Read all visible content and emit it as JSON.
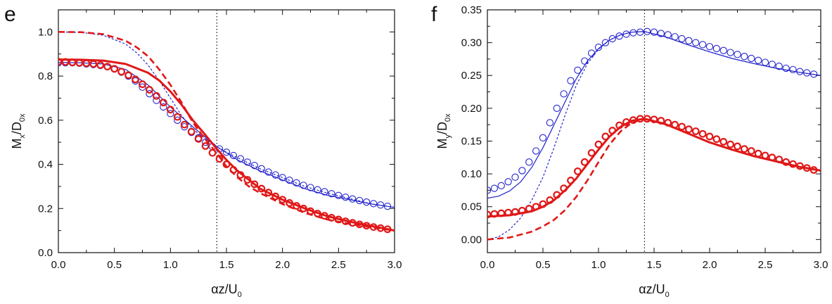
{
  "colors": {
    "blue": "#2323cc",
    "red": "#e01818",
    "axis": "#111111"
  },
  "chart_data": [
    {
      "type": "line",
      "panel_label": "e",
      "xlabel": {
        "main": "αz/U",
        "sub": "0"
      },
      "ylabel": {
        "main": "M",
        "sub1": "x",
        "mid": "/D",
        "sub2": "0x"
      },
      "xlim": [
        0,
        3
      ],
      "ylim": [
        0,
        1.1
      ],
      "xticks": [
        "0.0",
        "0.5",
        "1.0",
        "1.5",
        "2.0",
        "2.5",
        "3.0"
      ],
      "yticks": [
        "0.0",
        "0.2",
        "0.4",
        "0.6",
        "0.8",
        "1.0"
      ],
      "vline_x": 1.414,
      "series": [
        {
          "style": "blue-dashed-thin",
          "x": [
            0,
            0.2,
            0.4,
            0.6,
            0.7,
            0.8,
            0.9,
            1.0,
            1.1,
            1.2,
            1.3,
            1.414,
            1.5,
            1.6,
            1.8,
            2.0,
            2.2,
            2.4,
            2.6,
            2.8,
            3.0
          ],
          "y": [
            1.0,
            0.998,
            0.985,
            0.945,
            0.905,
            0.85,
            0.78,
            0.7,
            0.62,
            0.56,
            0.52,
            0.48,
            0.455,
            0.43,
            0.38,
            0.34,
            0.3,
            0.27,
            0.245,
            0.22,
            0.205
          ]
        },
        {
          "style": "blue-solid-thin",
          "x": [
            0,
            0.2,
            0.4,
            0.6,
            0.8,
            1.0,
            1.2,
            1.414,
            1.6,
            1.8,
            2.0,
            2.2,
            2.4,
            2.6,
            2.8,
            3.0
          ],
          "y": [
            0.862,
            0.86,
            0.855,
            0.83,
            0.76,
            0.66,
            0.57,
            0.48,
            0.42,
            0.37,
            0.33,
            0.29,
            0.26,
            0.24,
            0.22,
            0.205
          ]
        },
        {
          "style": "blue-circles",
          "x": [
            0,
            0.0625,
            0.125,
            0.1875,
            0.25,
            0.3125,
            0.375,
            0.4375,
            0.5,
            0.5625,
            0.625,
            0.6875,
            0.75,
            0.8125,
            0.875,
            0.9375,
            1.0,
            1.0625,
            1.125,
            1.1875,
            1.25,
            1.3125,
            1.375,
            1.4375,
            1.5,
            1.5625,
            1.625,
            1.6875,
            1.75,
            1.8125,
            1.875,
            1.9375,
            2.0,
            2.0625,
            2.125,
            2.1875,
            2.25,
            2.3125,
            2.375,
            2.4375,
            2.5,
            2.5625,
            2.625,
            2.6875,
            2.75,
            2.8125,
            2.875,
            2.9375
          ],
          "y": [
            0.86,
            0.86,
            0.86,
            0.858,
            0.855,
            0.852,
            0.848,
            0.842,
            0.832,
            0.818,
            0.8,
            0.778,
            0.75,
            0.72,
            0.69,
            0.66,
            0.63,
            0.6,
            0.57,
            0.545,
            0.52,
            0.5,
            0.48,
            0.47,
            0.455,
            0.44,
            0.425,
            0.41,
            0.395,
            0.38,
            0.365,
            0.352,
            0.34,
            0.328,
            0.316,
            0.305,
            0.295,
            0.285,
            0.276,
            0.267,
            0.259,
            0.251,
            0.243,
            0.236,
            0.229,
            0.222,
            0.216,
            0.21
          ]
        },
        {
          "style": "red-dashed-thick",
          "x": [
            0,
            0.2,
            0.4,
            0.6,
            0.7,
            0.8,
            0.9,
            1.0,
            1.1,
            1.2,
            1.3,
            1.414,
            1.5,
            1.6,
            1.7,
            1.8,
            2.0,
            2.2,
            2.4,
            2.6,
            2.8,
            3.0
          ],
          "y": [
            1.0,
            0.999,
            0.99,
            0.96,
            0.93,
            0.89,
            0.83,
            0.76,
            0.68,
            0.59,
            0.52,
            0.45,
            0.39,
            0.34,
            0.3,
            0.27,
            0.22,
            0.18,
            0.15,
            0.13,
            0.115,
            0.1
          ]
        },
        {
          "style": "red-solid-thick",
          "x": [
            0,
            0.2,
            0.4,
            0.6,
            0.8,
            0.9,
            1.0,
            1.1,
            1.2,
            1.3,
            1.414,
            1.5,
            1.6,
            1.7,
            1.8,
            2.0,
            2.2,
            2.4,
            2.6,
            2.8,
            3.0
          ],
          "y": [
            0.875,
            0.874,
            0.87,
            0.855,
            0.815,
            0.78,
            0.73,
            0.67,
            0.6,
            0.54,
            0.47,
            0.42,
            0.37,
            0.33,
            0.29,
            0.24,
            0.2,
            0.165,
            0.14,
            0.12,
            0.1
          ]
        },
        {
          "style": "red-circles",
          "x": [
            0,
            0.0625,
            0.125,
            0.1875,
            0.25,
            0.3125,
            0.375,
            0.4375,
            0.5,
            0.5625,
            0.625,
            0.6875,
            0.75,
            0.8125,
            0.875,
            0.9375,
            1.0,
            1.0625,
            1.125,
            1.1875,
            1.25,
            1.3125,
            1.375,
            1.4375,
            1.5,
            1.5625,
            1.625,
            1.6875,
            1.75,
            1.8125,
            1.875,
            1.9375,
            2.0,
            2.0625,
            2.125,
            2.1875,
            2.25,
            2.3125,
            2.375,
            2.4375,
            2.5,
            2.5625,
            2.625,
            2.6875,
            2.75,
            2.8125,
            2.875,
            2.9375
          ],
          "y": [
            0.865,
            0.864,
            0.862,
            0.86,
            0.858,
            0.855,
            0.85,
            0.843,
            0.833,
            0.82,
            0.804,
            0.785,
            0.763,
            0.738,
            0.71,
            0.68,
            0.648,
            0.615,
            0.58,
            0.548,
            0.515,
            0.483,
            0.452,
            0.425,
            0.4,
            0.375,
            0.352,
            0.33,
            0.31,
            0.29,
            0.272,
            0.255,
            0.24,
            0.225,
            0.212,
            0.2,
            0.188,
            0.177,
            0.167,
            0.158,
            0.15,
            0.142,
            0.135,
            0.128,
            0.122,
            0.116,
            0.111,
            0.106
          ]
        }
      ]
    },
    {
      "type": "line",
      "panel_label": "f",
      "xlabel": {
        "main": "αz/U",
        "sub": "0"
      },
      "ylabel": {
        "main": "M",
        "sub1": "y",
        "mid": "/D",
        "sub2": "0x"
      },
      "xlim": [
        0,
        3
      ],
      "ylim": [
        -0.02,
        0.35
      ],
      "xticks": [
        "0.0",
        "0.5",
        "1.0",
        "1.5",
        "2.0",
        "2.5",
        "3.0"
      ],
      "yticks": [
        "0.00",
        "0.05",
        "0.10",
        "0.15",
        "0.20",
        "0.25",
        "0.30",
        "0.35"
      ],
      "vline_x": 1.414,
      "series": [
        {
          "style": "blue-dashed-thin",
          "x": [
            0,
            0.1,
            0.2,
            0.3,
            0.4,
            0.5,
            0.6,
            0.7,
            0.8,
            0.9,
            1.0,
            1.1,
            1.2,
            1.3,
            1.414,
            1.6,
            1.8,
            2.0,
            2.2,
            2.4,
            2.6,
            2.8,
            3.0
          ],
          "y": [
            0.0,
            0.004,
            0.015,
            0.033,
            0.06,
            0.095,
            0.14,
            0.19,
            0.235,
            0.268,
            0.29,
            0.304,
            0.312,
            0.316,
            0.317,
            0.309,
            0.297,
            0.286,
            0.276,
            0.268,
            0.261,
            0.255,
            0.25
          ]
        },
        {
          "style": "blue-solid-thin",
          "x": [
            0,
            0.1,
            0.2,
            0.3,
            0.4,
            0.5,
            0.6,
            0.7,
            0.8,
            0.9,
            1.0,
            1.1,
            1.2,
            1.3,
            1.414,
            1.6,
            1.8,
            2.0,
            2.2,
            2.4,
            2.6,
            2.8,
            3.0
          ],
          "y": [
            0.063,
            0.066,
            0.074,
            0.088,
            0.11,
            0.14,
            0.175,
            0.21,
            0.245,
            0.272,
            0.291,
            0.304,
            0.312,
            0.316,
            0.317,
            0.309,
            0.297,
            0.286,
            0.276,
            0.268,
            0.261,
            0.255,
            0.25
          ]
        },
        {
          "style": "blue-circles",
          "x": [
            0,
            0.0625,
            0.125,
            0.1875,
            0.25,
            0.3125,
            0.375,
            0.4375,
            0.5,
            0.5625,
            0.625,
            0.6875,
            0.75,
            0.8125,
            0.875,
            0.9375,
            1.0,
            1.0625,
            1.125,
            1.1875,
            1.25,
            1.3125,
            1.375,
            1.4375,
            1.5,
            1.5625,
            1.625,
            1.6875,
            1.75,
            1.8125,
            1.875,
            1.9375,
            2.0,
            2.0625,
            2.125,
            2.1875,
            2.25,
            2.3125,
            2.375,
            2.4375,
            2.5,
            2.5625,
            2.625,
            2.6875,
            2.75,
            2.8125,
            2.875,
            2.9375
          ],
          "y": [
            0.075,
            0.078,
            0.082,
            0.088,
            0.095,
            0.105,
            0.118,
            0.135,
            0.155,
            0.178,
            0.2,
            0.222,
            0.242,
            0.258,
            0.272,
            0.284,
            0.293,
            0.3,
            0.306,
            0.31,
            0.313,
            0.315,
            0.316,
            0.317,
            0.316,
            0.314,
            0.312,
            0.309,
            0.306,
            0.303,
            0.3,
            0.297,
            0.294,
            0.291,
            0.288,
            0.285,
            0.282,
            0.279,
            0.276,
            0.273,
            0.27,
            0.267,
            0.264,
            0.261,
            0.259,
            0.256,
            0.254,
            0.252
          ]
        },
        {
          "style": "red-dashed-thick",
          "x": [
            0,
            0.2,
            0.4,
            0.5,
            0.6,
            0.7,
            0.8,
            0.9,
            1.0,
            1.1,
            1.2,
            1.3,
            1.414,
            1.6,
            1.8,
            2.0,
            2.2,
            2.4,
            2.6,
            2.8,
            3.0
          ],
          "y": [
            0.0,
            0.003,
            0.012,
            0.02,
            0.03,
            0.045,
            0.065,
            0.09,
            0.118,
            0.145,
            0.165,
            0.178,
            0.184,
            0.176,
            0.162,
            0.148,
            0.137,
            0.127,
            0.119,
            0.111,
            0.105
          ]
        },
        {
          "style": "red-solid-thick",
          "x": [
            0,
            0.2,
            0.4,
            0.5,
            0.6,
            0.7,
            0.8,
            0.9,
            1.0,
            1.1,
            1.2,
            1.3,
            1.414,
            1.6,
            1.8,
            2.0,
            2.2,
            2.4,
            2.6,
            2.8,
            3.0
          ],
          "y": [
            0.035,
            0.037,
            0.043,
            0.05,
            0.06,
            0.075,
            0.093,
            0.115,
            0.137,
            0.157,
            0.172,
            0.181,
            0.184,
            0.176,
            0.162,
            0.148,
            0.137,
            0.127,
            0.119,
            0.111,
            0.105
          ]
        },
        {
          "style": "red-circles",
          "x": [
            0,
            0.0625,
            0.125,
            0.1875,
            0.25,
            0.3125,
            0.375,
            0.4375,
            0.5,
            0.5625,
            0.625,
            0.6875,
            0.75,
            0.8125,
            0.875,
            0.9375,
            1.0,
            1.0625,
            1.125,
            1.1875,
            1.25,
            1.3125,
            1.375,
            1.4375,
            1.5,
            1.5625,
            1.625,
            1.6875,
            1.75,
            1.8125,
            1.875,
            1.9375,
            2.0,
            2.0625,
            2.125,
            2.1875,
            2.25,
            2.3125,
            2.375,
            2.4375,
            2.5,
            2.5625,
            2.625,
            2.6875,
            2.75,
            2.8125,
            2.875,
            2.9375
          ],
          "y": [
            0.038,
            0.039,
            0.04,
            0.041,
            0.042,
            0.044,
            0.047,
            0.05,
            0.054,
            0.06,
            0.068,
            0.078,
            0.09,
            0.104,
            0.118,
            0.132,
            0.145,
            0.157,
            0.166,
            0.174,
            0.179,
            0.182,
            0.184,
            0.184,
            0.183,
            0.181,
            0.178,
            0.175,
            0.172,
            0.168,
            0.165,
            0.161,
            0.157,
            0.153,
            0.149,
            0.145,
            0.142,
            0.138,
            0.135,
            0.131,
            0.128,
            0.125,
            0.122,
            0.118,
            0.115,
            0.112,
            0.109,
            0.106
          ]
        }
      ]
    }
  ]
}
